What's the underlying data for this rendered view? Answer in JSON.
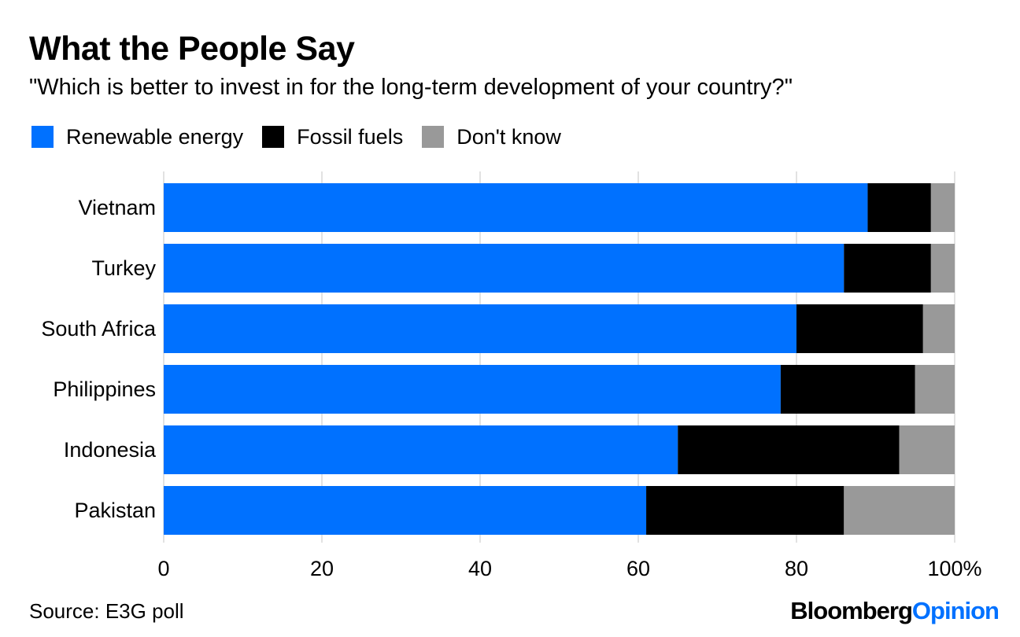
{
  "title": "What the People Say",
  "subtitle": "\"Which is better to invest in for the long-term development of your country?\"",
  "source": "Source: E3G poll",
  "brand": {
    "name": "Bloomberg",
    "suffix": "Opinion"
  },
  "colors": {
    "renewable": "#0071ff",
    "fossil": "#000000",
    "dont_know": "#999999",
    "grid": "#d9d9d9",
    "brand_accent": "#0071ff"
  },
  "legend": [
    {
      "label": "Renewable energy",
      "color": "#0071ff"
    },
    {
      "label": "Fossil fuels",
      "color": "#000000"
    },
    {
      "label": "Don't know",
      "color": "#999999"
    }
  ],
  "chart_data": {
    "type": "bar",
    "orientation": "horizontal",
    "stacked": true,
    "title": "What the People Say",
    "subtitle": "\"Which is better to invest in for the long-term development of your country?\"",
    "categories": [
      "Vietnam",
      "Turkey",
      "South Africa",
      "Philippines",
      "Indonesia",
      "Pakistan"
    ],
    "series": [
      {
        "name": "Renewable energy",
        "color": "#0071ff",
        "values": [
          89,
          86,
          80,
          78,
          65,
          61
        ]
      },
      {
        "name": "Fossil fuels",
        "color": "#000000",
        "values": [
          8,
          11,
          16,
          17,
          28,
          25
        ]
      },
      {
        "name": "Don't know",
        "color": "#999999",
        "values": [
          3,
          3,
          4,
          5,
          7,
          14
        ]
      }
    ],
    "xlim": [
      0,
      100
    ],
    "xticks": [
      0,
      20,
      40,
      60,
      80,
      100
    ],
    "xtick_labels": [
      "0",
      "20",
      "40",
      "60",
      "80",
      "100%"
    ],
    "grid": true,
    "legend_position": "top-left"
  }
}
